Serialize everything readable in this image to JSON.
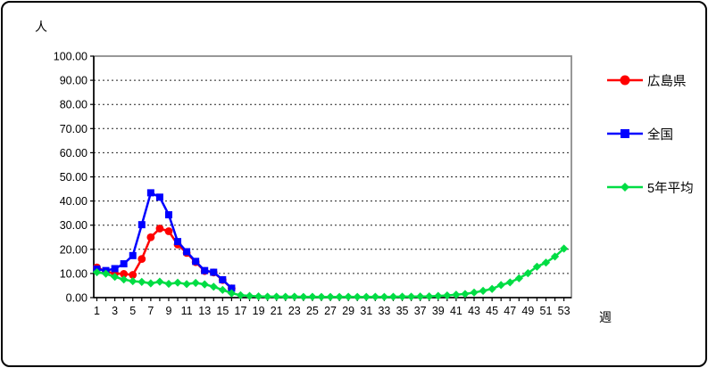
{
  "y_axis_unit": "人",
  "x_axis_unit": "週",
  "chart_data": {
    "type": "line",
    "title": "",
    "ylabel": "人",
    "xlabel": "週",
    "ylim": [
      0,
      100
    ],
    "y_tick_step": 10,
    "y_ticks": [
      "0.00",
      "10.00",
      "20.00",
      "30.00",
      "40.00",
      "50.00",
      "60.00",
      "70.00",
      "80.00",
      "90.00",
      "100.00"
    ],
    "x_tick_labels": [
      "1",
      "3",
      "5",
      "7",
      "9",
      "11",
      "13",
      "15",
      "17",
      "19",
      "21",
      "23",
      "25",
      "27",
      "29",
      "31",
      "33",
      "35",
      "37",
      "39",
      "41",
      "43",
      "45",
      "47",
      "49",
      "51",
      "53"
    ],
    "weeks_total": 53,
    "grid": "horizontal-dashed",
    "legend_position": "right",
    "series": [
      {
        "name": "広島県",
        "color": "#ff0000",
        "marker": "circle",
        "start_week": 1,
        "values": [
          12.5,
          10.8,
          10.0,
          9.8,
          9.4,
          16.0,
          25.0,
          28.6,
          27.5,
          22.0,
          18.5,
          14.7,
          11.0,
          10.4,
          7.3,
          3.8
        ]
      },
      {
        "name": "全国",
        "color": "#0000ff",
        "marker": "square",
        "start_week": 1,
        "values": [
          11.8,
          11.2,
          12.0,
          14.0,
          17.4,
          30.2,
          43.4,
          41.6,
          34.3,
          23.2,
          19.0,
          15.0,
          11.2,
          10.5,
          7.4,
          3.9
        ]
      },
      {
        "name": "5年平均",
        "color": "#00dd44",
        "marker": "diamond",
        "start_week": 1,
        "values": [
          10.5,
          9.9,
          8.6,
          7.5,
          6.8,
          6.5,
          5.9,
          6.6,
          5.7,
          6.2,
          5.6,
          6.1,
          5.5,
          4.5,
          3.2,
          1.8,
          1.0,
          0.7,
          0.5,
          0.4,
          0.4,
          0.35,
          0.4,
          0.3,
          0.35,
          0.3,
          0.3,
          0.3,
          0.35,
          0.3,
          0.3,
          0.35,
          0.3,
          0.35,
          0.4,
          0.4,
          0.45,
          0.5,
          0.7,
          0.9,
          1.2,
          1.5,
          2.1,
          2.8,
          3.6,
          5.2,
          6.3,
          8.0,
          10.1,
          12.8,
          14.5,
          17.0,
          20.3
        ]
      }
    ],
    "plot_frame_color": "#8c8c8c",
    "gridline_color": "#222222",
    "axis_color": "#000000"
  }
}
